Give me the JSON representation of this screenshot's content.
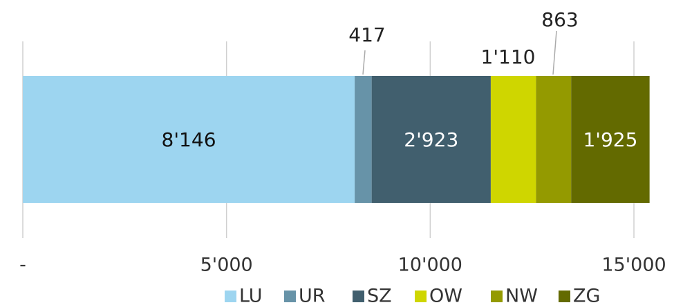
{
  "chart_data": {
    "type": "stacked-bar-horizontal",
    "series": [
      {
        "name": "LU",
        "color": "#9dd5f0",
        "values": [
          8146
        ],
        "value_labels": [
          "8'146"
        ]
      },
      {
        "name": "UR",
        "color": "#6793a8",
        "values": [
          417
        ],
        "value_labels": [
          "417"
        ]
      },
      {
        "name": "SZ",
        "color": "#415f6e",
        "values": [
          2923
        ],
        "value_labels": [
          "2'923"
        ]
      },
      {
        "name": "OW",
        "color": "#cfd600",
        "values": [
          1110
        ],
        "value_labels": [
          "1'110"
        ]
      },
      {
        "name": "NW",
        "color": "#949a00",
        "values": [
          863
        ],
        "value_labels": [
          "863"
        ]
      },
      {
        "name": "ZG",
        "color": "#636a00",
        "values": [
          1925
        ],
        "value_labels": [
          "1'925"
        ]
      }
    ],
    "xlim": [
      0,
      15400
    ],
    "xticks": [
      {
        "value": 0,
        "label": "-"
      },
      {
        "value": 5000,
        "label": "5'000"
      },
      {
        "value": 10000,
        "label": "10'000"
      },
      {
        "value": 15000,
        "label": "15'000"
      }
    ],
    "grid": true,
    "legend": "bottom"
  }
}
